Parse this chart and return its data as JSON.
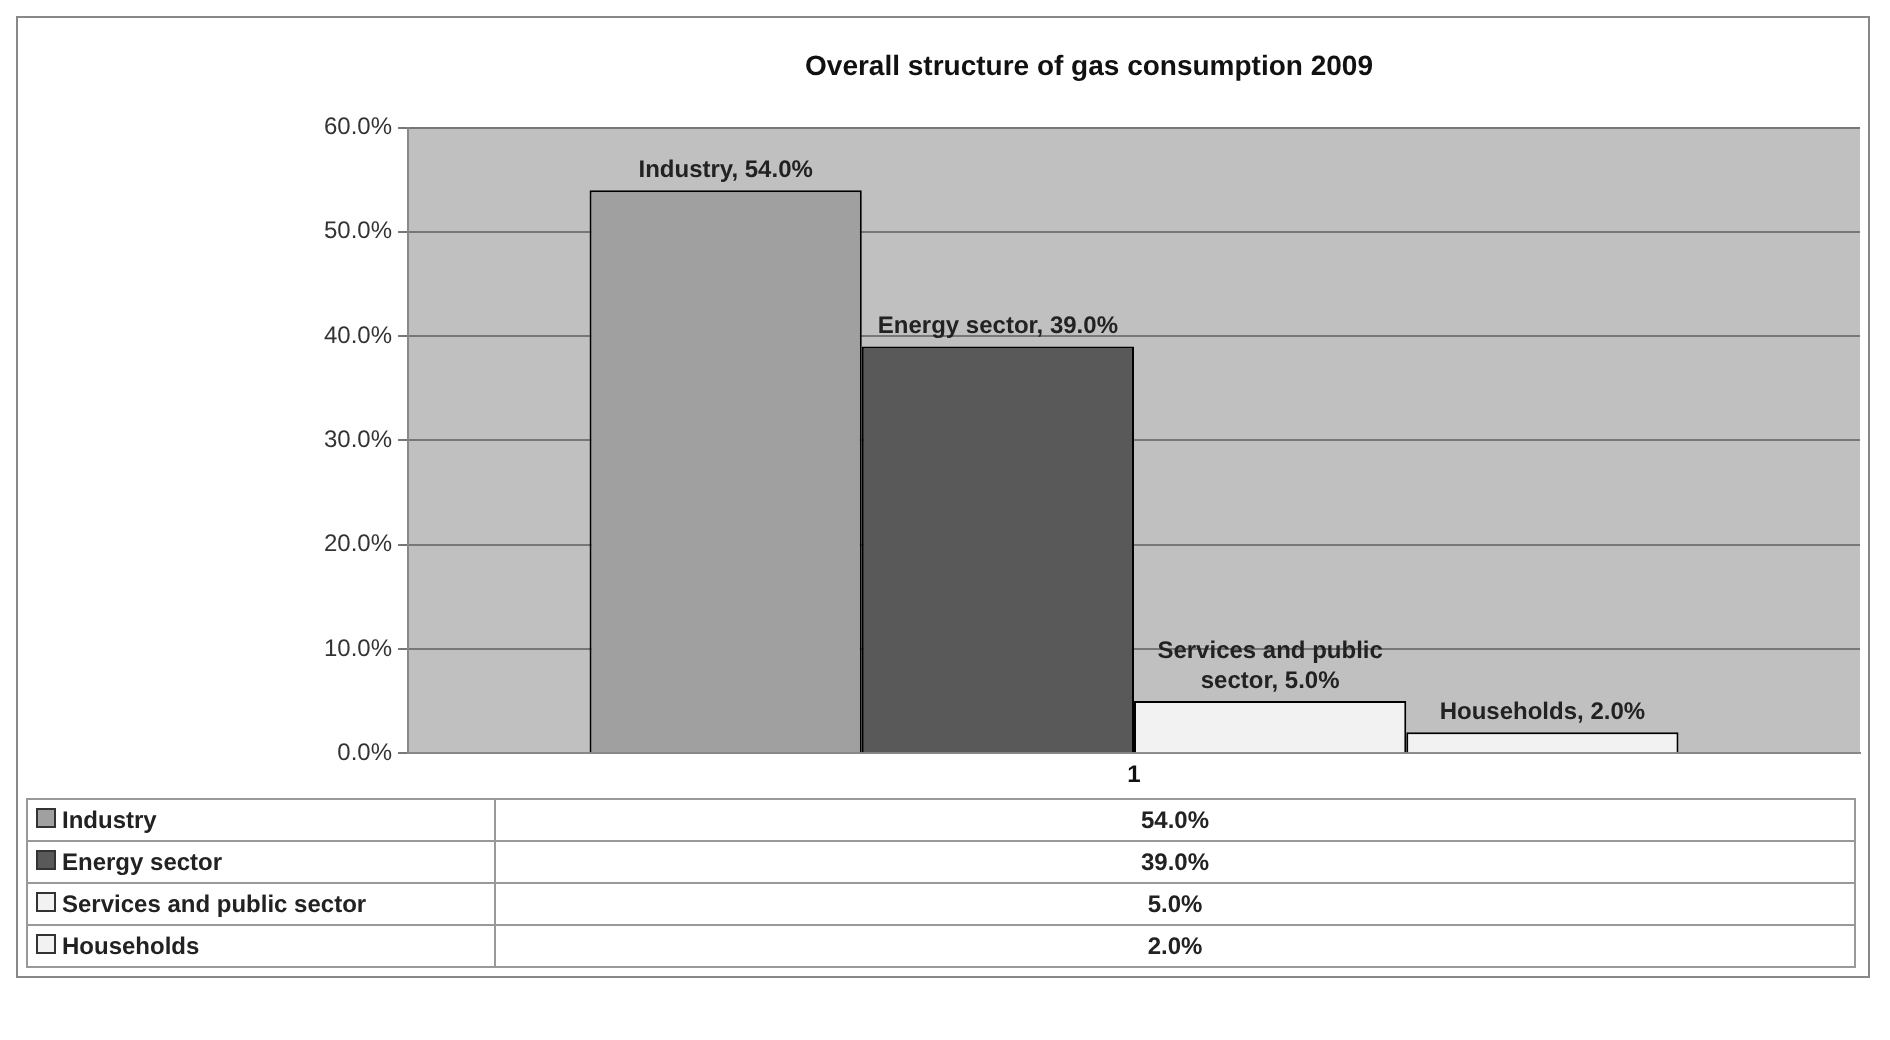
{
  "chart_data": {
    "type": "bar",
    "title": "Overall structure of gas consumption 2009",
    "categories": [
      "1"
    ],
    "series": [
      {
        "name": "Industry",
        "color": "#a0a0a0",
        "values": [
          54.0
        ],
        "value_labels": [
          "Industry, 54.0%"
        ]
      },
      {
        "name": "Energy sector",
        "color": "#595959",
        "values": [
          39.0
        ],
        "value_labels": [
          "Energy sector, 39.0%"
        ]
      },
      {
        "name": "Services and public sector",
        "color": "#f2f2f2",
        "values": [
          5.0
        ],
        "value_labels": [
          "Services and public sector, 5.0%"
        ]
      },
      {
        "name": "Households",
        "color": "#f2f2f2",
        "values": [
          2.0
        ],
        "value_labels": [
          "Households, 2.0%"
        ]
      }
    ],
    "annotations": [
      "54.0%",
      "39.0%",
      "5.0%",
      "2.0%"
    ],
    "ylim": [
      0,
      60
    ],
    "yticks": [
      {
        "value": 0,
        "label": "0.0%"
      },
      {
        "value": 10,
        "label": "10.0%"
      },
      {
        "value": 20,
        "label": "20.0%"
      },
      {
        "value": 30,
        "label": "30.0%"
      },
      {
        "value": 40,
        "label": "40.0%"
      },
      {
        "value": 50,
        "label": "50.0%"
      },
      {
        "value": 60,
        "label": "60.0%"
      }
    ],
    "grid": "y",
    "legend": "bottom"
  }
}
